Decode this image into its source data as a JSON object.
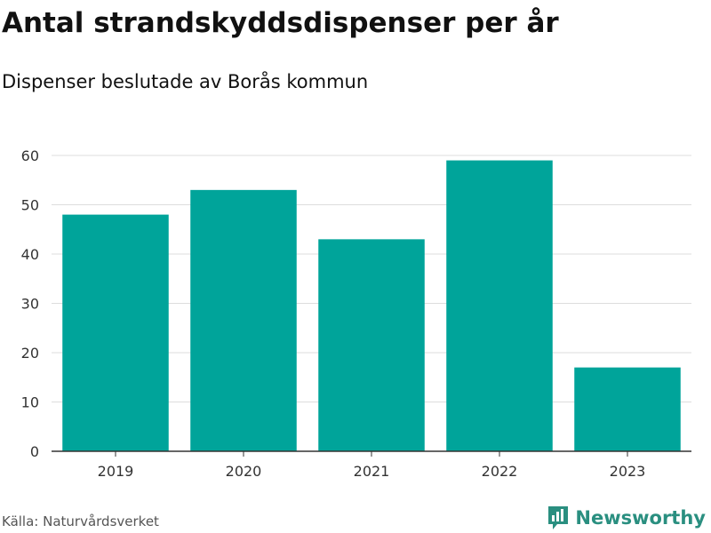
{
  "header": {
    "title": "Antal strandskyddsdispenser per år",
    "subtitle": "Dispenser beslutade av Borås kommun"
  },
  "footer": {
    "source": "Källa: Naturvårdsverket",
    "brand": "Newsworthy",
    "brand_icon": "bar-chart-speech-bubble-icon"
  },
  "colors": {
    "bar": "#00a49a",
    "grid": "#dddddd",
    "axis": "#333333",
    "brand": "#2a8f80"
  },
  "chart_data": {
    "type": "bar",
    "title": "Antal strandskyddsdispenser per år",
    "subtitle": "Dispenser beslutade av Borås kommun",
    "categories": [
      "2019",
      "2020",
      "2021",
      "2022",
      "2023"
    ],
    "values": [
      48,
      53,
      43,
      59,
      17
    ],
    "xlabel": "",
    "ylabel": "",
    "ylim": [
      0,
      60
    ],
    "yticks": [
      0,
      10,
      20,
      30,
      40,
      50,
      60
    ],
    "grid": true,
    "legend": "none"
  }
}
